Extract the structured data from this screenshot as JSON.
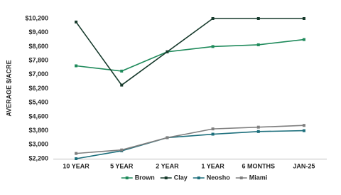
{
  "chart_data": {
    "type": "line",
    "y_label": "AVERAGE $/ACRE",
    "categories": [
      "10 YEAR",
      "5 YEAR",
      "2 YEAR",
      "1 YEAR",
      "6 MONTHS",
      "JAN-25"
    ],
    "series": [
      {
        "name": "Brown",
        "color": "#1f8a5b",
        "values": [
          7500,
          7200,
          8300,
          8600,
          8700,
          9000
        ]
      },
      {
        "name": "Clay",
        "color": "#173a2c",
        "values": [
          10000,
          6400,
          8300,
          10200,
          10200,
          10200
        ]
      },
      {
        "name": "Neosho",
        "color": "#1d6f7c",
        "values": [
          2200,
          2650,
          3400,
          3600,
          3750,
          3800
        ]
      },
      {
        "name": "Miami",
        "color": "#7f7f7f",
        "values": [
          2500,
          2700,
          3400,
          3900,
          4000,
          4100
        ]
      }
    ],
    "ylim": [
      2200,
      10200
    ],
    "yticks": [
      {
        "value": 2200,
        "label": "$2,200"
      },
      {
        "value": 3000,
        "label": "$3,000"
      },
      {
        "value": 3800,
        "label": "$3,800"
      },
      {
        "value": 4600,
        "label": "$4,600"
      },
      {
        "value": 5400,
        "label": "$5,400"
      },
      {
        "value": 6200,
        "label": "$6,200"
      },
      {
        "value": 7000,
        "label": "$7,000"
      },
      {
        "value": 7800,
        "label": "$7,800"
      },
      {
        "value": 8600,
        "label": "$8,600"
      },
      {
        "value": 9400,
        "label": "$9,400"
      },
      {
        "value": 10200,
        "label": "$10,200"
      }
    ],
    "grid": false,
    "legend": "bottom"
  }
}
